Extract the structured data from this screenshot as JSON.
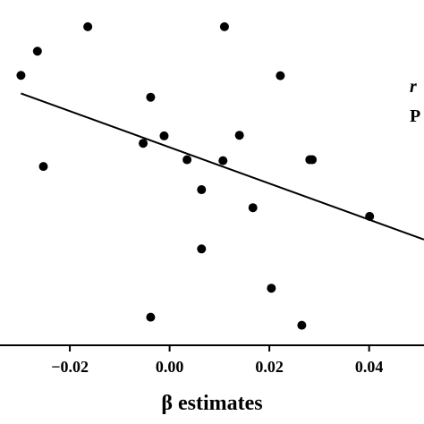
{
  "chart_data": {
    "type": "scatter",
    "xlabel": "β   estimates",
    "xlim": [
      -0.034,
      0.051
    ],
    "ylim": [
      0,
      1
    ],
    "x_ticks": [
      -0.02,
      0.0,
      0.02,
      0.04
    ],
    "x_tick_labels": [
      "−0.02",
      "0.00",
      "0.02",
      "0.04"
    ],
    "y_axis_labels_visible": false,
    "grid": false,
    "points": [
      {
        "x": -0.0298,
        "y": 0.816
      },
      {
        "x": -0.0265,
        "y": 0.891
      },
      {
        "x": -0.0164,
        "y": 0.967
      },
      {
        "x": -0.0253,
        "y": 0.533
      },
      {
        "x": -0.0038,
        "y": 0.748
      },
      {
        "x": -0.0053,
        "y": 0.605
      },
      {
        "x": -0.0011,
        "y": 0.628
      },
      {
        "x": 0.0035,
        "y": 0.554
      },
      {
        "x": 0.0064,
        "y": 0.461
      },
      {
        "x": 0.0107,
        "y": 0.551
      },
      {
        "x": 0.011,
        "y": 0.967
      },
      {
        "x": 0.014,
        "y": 0.63
      },
      {
        "x": 0.0167,
        "y": 0.405
      },
      {
        "x": 0.0064,
        "y": 0.277
      },
      {
        "x": -0.0038,
        "y": 0.065
      },
      {
        "x": 0.0222,
        "y": 0.815
      },
      {
        "x": 0.0281,
        "y": 0.554
      },
      {
        "x": 0.0286,
        "y": 0.554
      },
      {
        "x": 0.0204,
        "y": 0.155
      },
      {
        "x": 0.0265,
        "y": 0.04
      },
      {
        "x": 0.0401,
        "y": 0.378
      }
    ],
    "fit_line": {
      "x": [
        -0.0298,
        0.051
      ],
      "y": [
        0.76,
        0.306
      ]
    },
    "annotations": [
      "r",
      "P"
    ]
  }
}
